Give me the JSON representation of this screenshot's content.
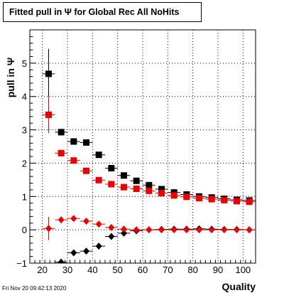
{
  "title_box": {
    "text": "Fitted pull in  Ψ  for Global Rec All NoHits"
  },
  "footer": {
    "timestamp": "Fri Nov 20 09:42:13 2020"
  },
  "chart_data": {
    "type": "scatter",
    "title": "Fitted pull in  Ψ  for Global Rec All NoHits",
    "xlabel": "Quality",
    "ylabel": "pull in  Ψ",
    "xlim": [
      15,
      105
    ],
    "ylim": [
      -1,
      6
    ],
    "x_ticks": [
      20,
      30,
      40,
      50,
      60,
      70,
      80,
      90,
      100
    ],
    "y_ticks": [
      -1,
      0,
      1,
      2,
      3,
      4,
      5
    ],
    "grid": true,
    "x_bin_halfwidth": 2.5,
    "colors": {
      "black": "#000000",
      "red": "#ee0000"
    },
    "series": [
      {
        "marker": "square",
        "color": "#000000",
        "x": [
          22.5,
          27.5,
          32.5,
          37.5,
          42.5,
          47.5,
          52.5,
          57.5,
          62.5,
          67.5,
          72.5,
          77.5,
          82.5,
          87.5,
          92.5,
          97.5,
          102.5
        ],
        "y": [
          4.68,
          2.93,
          2.65,
          2.62,
          2.25,
          1.85,
          1.63,
          1.47,
          1.34,
          1.22,
          1.12,
          1.06,
          1.0,
          0.97,
          0.93,
          0.9,
          0.88
        ],
        "yerr": [
          0.75,
          0.1,
          0.05,
          0.05,
          0.05,
          0.04,
          0.03,
          0.03,
          0.03,
          0.03,
          0.02,
          0.02,
          0.02,
          0.02,
          0.02,
          0.02,
          0.02
        ]
      },
      {
        "marker": "square",
        "color": "#ee0000",
        "x": [
          22.5,
          27.5,
          32.5,
          37.5,
          42.5,
          47.5,
          52.5,
          57.5,
          62.5,
          67.5,
          72.5,
          77.5,
          82.5,
          87.5,
          92.5,
          97.5,
          102.5
        ],
        "y": [
          3.45,
          2.3,
          2.08,
          1.77,
          1.49,
          1.37,
          1.28,
          1.23,
          1.17,
          1.1,
          1.03,
          0.99,
          0.95,
          0.92,
          0.89,
          0.86,
          0.84
        ],
        "yerr": [
          0.55,
          0.08,
          0.05,
          0.04,
          0.04,
          0.03,
          0.03,
          0.03,
          0.02,
          0.02,
          0.02,
          0.02,
          0.02,
          0.02,
          0.02,
          0.02,
          0.02
        ]
      },
      {
        "marker": "diamond",
        "color": "#000000",
        "x": [
          27.5,
          32.5,
          37.5,
          42.5,
          47.5,
          52.5,
          57.5,
          62.5,
          67.5,
          72.5,
          77.5,
          82.5,
          87.5,
          92.5,
          97.5,
          102.5
        ],
        "y": [
          -0.97,
          -0.69,
          -0.64,
          -0.49,
          -0.2,
          -0.1,
          -0.03,
          0.0,
          0.01,
          0.02,
          0.02,
          0.03,
          0.02,
          0.01,
          0.01,
          0.0
        ],
        "yerr": [
          0.05,
          0.04,
          0.04,
          0.03,
          0.03,
          0.02,
          0.02,
          0.02,
          0.02,
          0.02,
          0.02,
          0.02,
          0.02,
          0.02,
          0.02,
          0.02
        ]
      },
      {
        "marker": "diamond",
        "color": "#ee0000",
        "x": [
          22.5,
          27.5,
          32.5,
          37.5,
          42.5,
          47.5,
          52.5,
          57.5,
          62.5,
          67.5,
          72.5,
          77.5,
          82.5,
          87.5,
          92.5,
          97.5,
          102.5
        ],
        "y": [
          0.04,
          0.3,
          0.34,
          0.26,
          0.17,
          0.07,
          0.02,
          0.0,
          0.0,
          0.0,
          0.0,
          0.0,
          0.0,
          0.0,
          0.0,
          0.0,
          0.0
        ],
        "yerr": [
          0.35,
          0.05,
          0.04,
          0.03,
          0.03,
          0.02,
          0.02,
          0.02,
          0.02,
          0.02,
          0.02,
          0.02,
          0.02,
          0.02,
          0.02,
          0.02,
          0.02
        ]
      }
    ]
  }
}
